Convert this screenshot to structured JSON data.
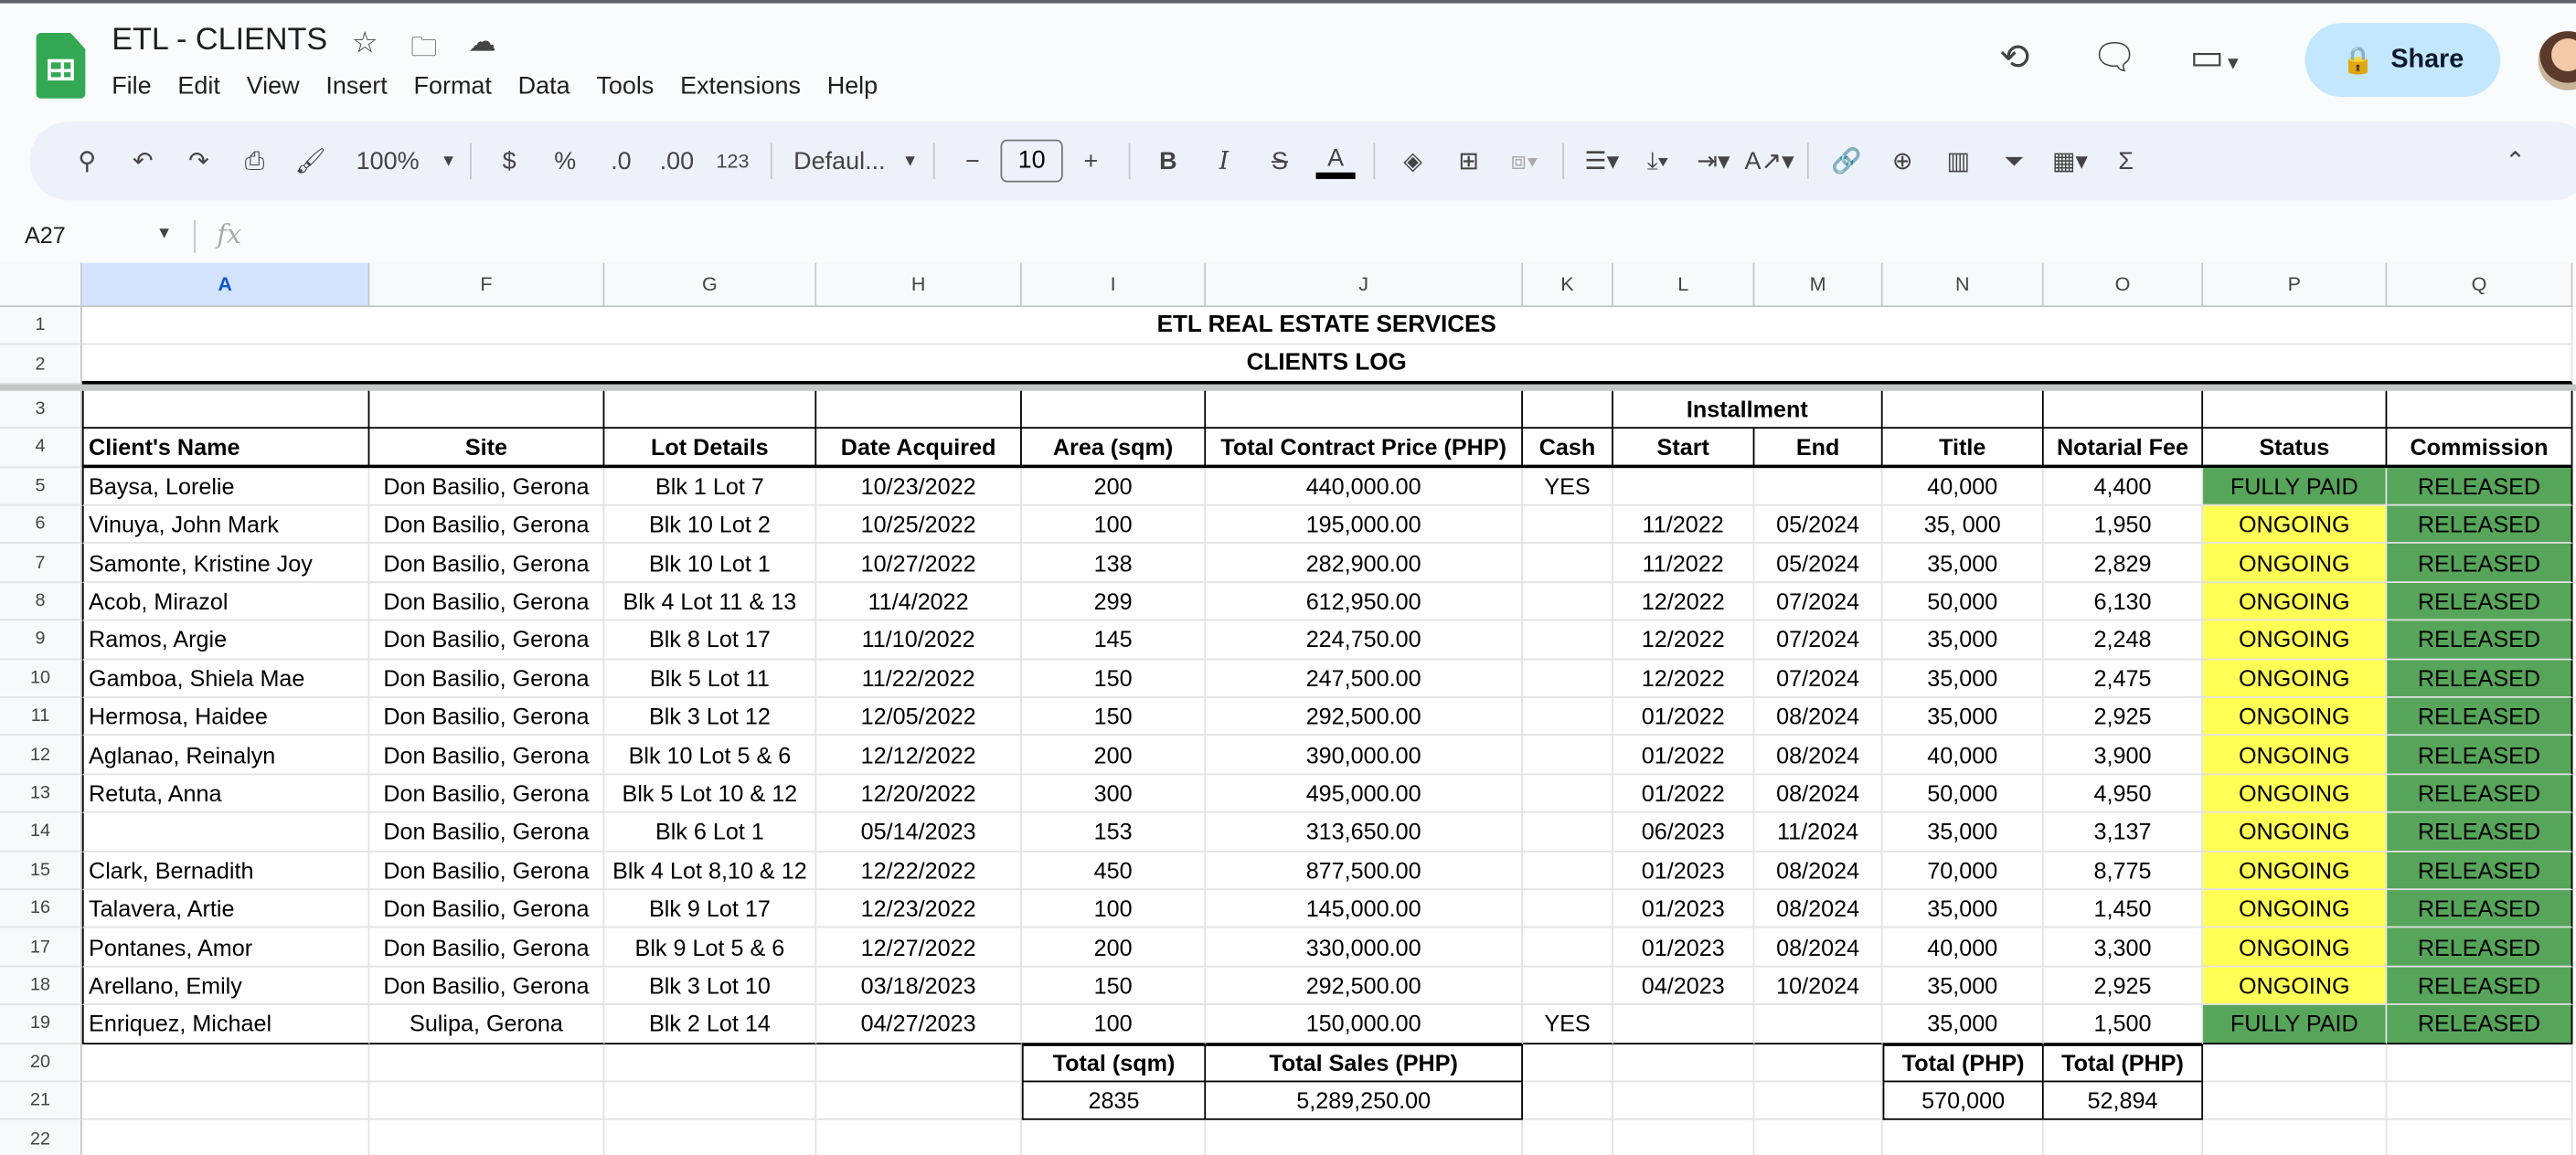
{
  "app": {
    "doc_title": "ETL - CLIENTS",
    "menu": [
      "File",
      "Edit",
      "View",
      "Insert",
      "Format",
      "Data",
      "Tools",
      "Extensions",
      "Help"
    ],
    "share_label": "Share"
  },
  "toolbar": {
    "zoom": "100%",
    "currency": "$",
    "percent": "%",
    "dec_decrease": ".0",
    "dec_increase": ".00",
    "number_format": "123",
    "font": "Defaul...",
    "font_size": "10",
    "bold": "B",
    "italic": "I"
  },
  "formula_bar": {
    "name_box": "A27",
    "fx": "fx",
    "value": ""
  },
  "colors": {
    "green": "#57a55a",
    "yellow": "#ffff55",
    "share": "#c2e7ff"
  },
  "sheet": {
    "columns": [
      "A",
      "F",
      "G",
      "H",
      "I",
      "J",
      "K",
      "L",
      "M",
      "N",
      "O",
      "P",
      "Q"
    ],
    "row_numbers": [
      "1",
      "2",
      "3",
      "4",
      "5",
      "6",
      "7",
      "8",
      "9",
      "10",
      "11",
      "12",
      "13",
      "14",
      "15",
      "16",
      "17",
      "18",
      "19",
      "20",
      "21",
      "22"
    ],
    "title": "ETL REAL ESTATE SERVICES",
    "subtitle": "CLIENTS LOG",
    "installment": "Installment",
    "headers": [
      "Client's Name",
      "Site",
      "Lot Details",
      "Date Acquired",
      "Area (sqm)",
      "Total Contract Price (PHP)",
      "Cash",
      "Start",
      "End",
      "Title",
      "Notarial Fee",
      "Status",
      "Commission"
    ],
    "rows": [
      [
        "Baysa, Lorelie",
        "Don Basilio, Gerona",
        "Blk 1 Lot 7",
        "10/23/2022",
        "200",
        "440,000.00",
        "YES",
        "",
        "",
        "40,000",
        "4,400",
        "FULLY PAID",
        "RELEASED"
      ],
      [
        "Vinuya, John Mark",
        "Don Basilio, Gerona",
        "Blk 10 Lot 2",
        "10/25/2022",
        "100",
        "195,000.00",
        "",
        "11/2022",
        "05/2024",
        "35, 000",
        "1,950",
        "ONGOING",
        "RELEASED"
      ],
      [
        "Samonte, Kristine Joy",
        "Don Basilio, Gerona",
        "Blk 10 Lot 1",
        "10/27/2022",
        "138",
        "282,900.00",
        "",
        "11/2022",
        "05/2024",
        "35,000",
        "2,829",
        "ONGOING",
        "RELEASED"
      ],
      [
        "Acob, Mirazol",
        "Don Basilio, Gerona",
        "Blk 4 Lot 11 & 13",
        "11/4/2022",
        "299",
        "612,950.00",
        "",
        "12/2022",
        "07/2024",
        "50,000",
        "6,130",
        "ONGOING",
        "RELEASED"
      ],
      [
        "Ramos, Argie",
        "Don Basilio, Gerona",
        "Blk 8 Lot 17",
        "11/10/2022",
        "145",
        "224,750.00",
        "",
        "12/2022",
        "07/2024",
        "35,000",
        "2,248",
        "ONGOING",
        "RELEASED"
      ],
      [
        "Gamboa, Shiela Mae",
        "Don Basilio, Gerona",
        "Blk 5 Lot 11",
        "11/22/2022",
        "150",
        "247,500.00",
        "",
        "12/2022",
        "07/2024",
        "35,000",
        "2,475",
        "ONGOING",
        "RELEASED"
      ],
      [
        "Hermosa, Haidee",
        "Don Basilio, Gerona",
        "Blk 3 Lot 12",
        "12/05/2022",
        "150",
        "292,500.00",
        "",
        "01/2022",
        "08/2024",
        "35,000",
        "2,925",
        "ONGOING",
        "RELEASED"
      ],
      [
        "Aglanao, Reinalyn",
        "Don Basilio, Gerona",
        "Blk 10 Lot 5 & 6",
        "12/12/2022",
        "200",
        "390,000.00",
        "",
        "01/2022",
        "08/2024",
        "40,000",
        "3,900",
        "ONGOING",
        "RELEASED"
      ],
      [
        "Retuta, Anna",
        "Don Basilio, Gerona",
        "Blk 5 Lot 10 & 12",
        "12/20/2022",
        "300",
        "495,000.00",
        "",
        "01/2022",
        "08/2024",
        "50,000",
        "4,950",
        "ONGOING",
        "RELEASED"
      ],
      [
        "",
        "Don Basilio, Gerona",
        "Blk 6 Lot 1",
        "05/14/2023",
        "153",
        "313,650.00",
        "",
        "06/2023",
        "11/2024",
        "35,000",
        "3,137",
        "ONGOING",
        "RELEASED"
      ],
      [
        "Clark, Bernadith",
        "Don Basilio, Gerona",
        "Blk 4 Lot 8,10 & 12",
        "12/22/2022",
        "450",
        "877,500.00",
        "",
        "01/2023",
        "08/2024",
        "70,000",
        "8,775",
        "ONGOING",
        "RELEASED"
      ],
      [
        "Talavera, Artie",
        "Don Basilio, Gerona",
        "Blk 9 Lot 17",
        "12/23/2022",
        "100",
        "145,000.00",
        "",
        "01/2023",
        "08/2024",
        "35,000",
        "1,450",
        "ONGOING",
        "RELEASED"
      ],
      [
        "Pontanes, Amor",
        "Don Basilio, Gerona",
        "Blk 9 Lot 5 & 6",
        "12/27/2022",
        "200",
        "330,000.00",
        "",
        "01/2023",
        "08/2024",
        "40,000",
        "3,300",
        "ONGOING",
        "RELEASED"
      ],
      [
        "Arellano, Emily",
        "Don Basilio, Gerona",
        "Blk 3 Lot 10",
        "03/18/2023",
        "150",
        "292,500.00",
        "",
        "04/2023",
        "10/2024",
        "35,000",
        "2,925",
        "ONGOING",
        "RELEASED"
      ],
      [
        "Enriquez, Michael",
        "Sulipa, Gerona",
        "Blk 2 Lot 14",
        "04/27/2023",
        "100",
        "150,000.00",
        "YES",
        "",
        "",
        "35,000",
        "1,500",
        "FULLY PAID",
        "RELEASED"
      ]
    ],
    "totals": {
      "area_label": "Total (sqm)",
      "area_value": "2835",
      "sales_label": "Total Sales (PHP)",
      "sales_value": "5,289,250.00",
      "title_label": "Total (PHP)",
      "title_value": "570,000",
      "notarial_label": "Total (PHP)",
      "notarial_value": "52,894"
    }
  }
}
